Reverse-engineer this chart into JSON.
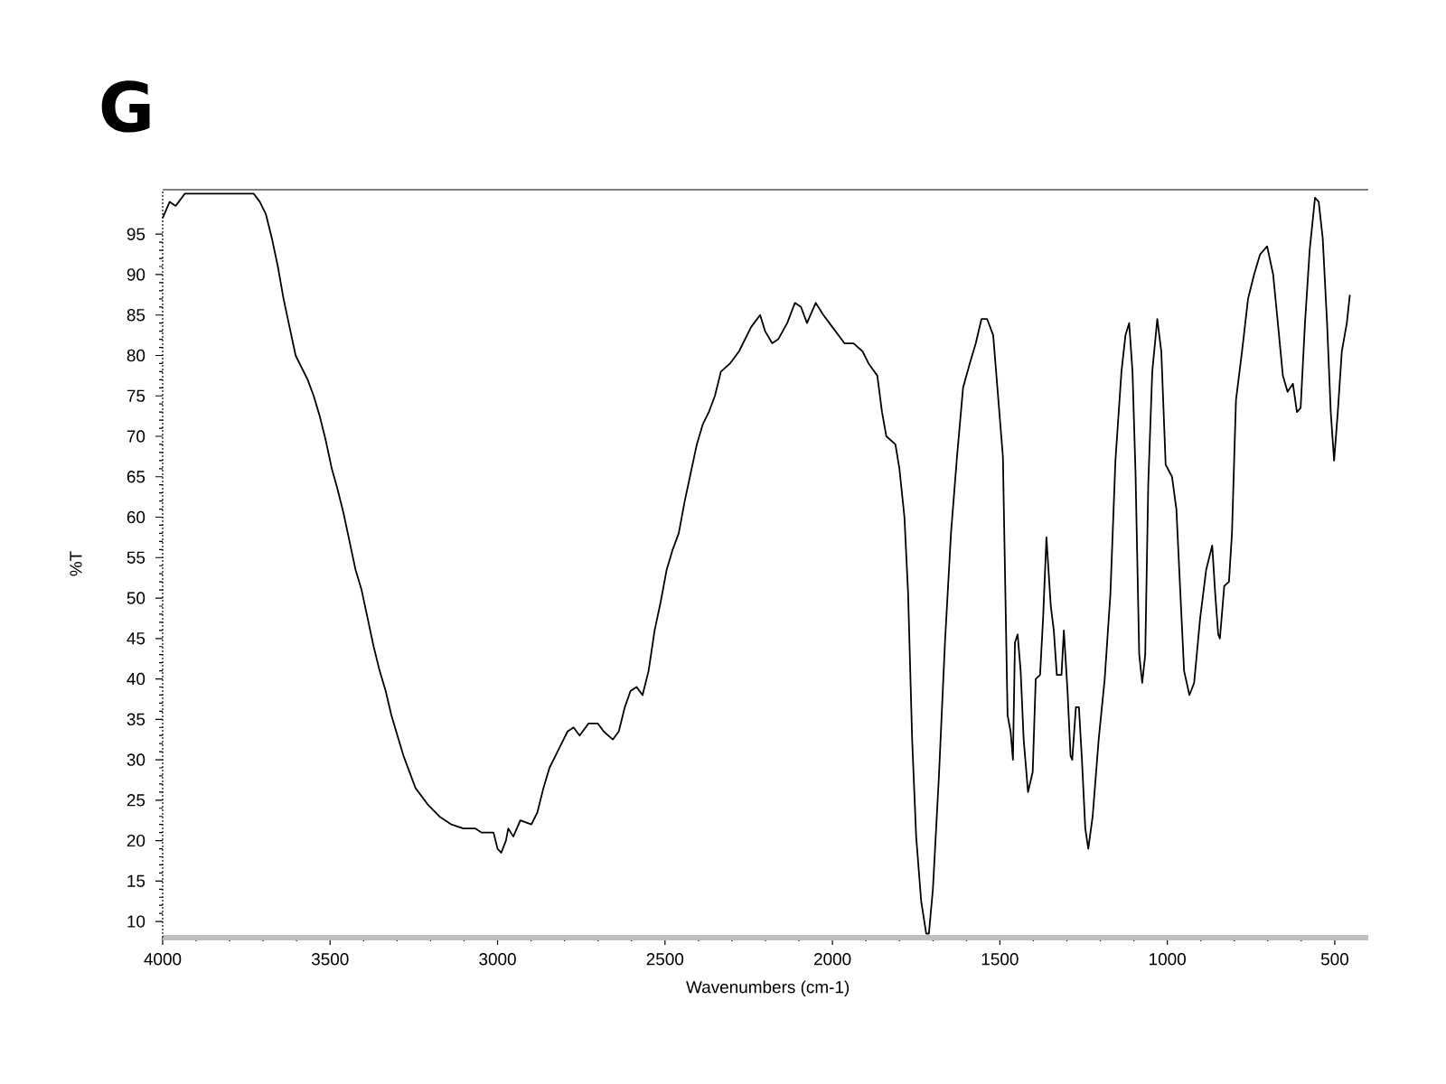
{
  "chart_data": {
    "type": "line",
    "title": "G",
    "xlabel": "Wavenumbers (cm-1)",
    "ylabel": "%T",
    "xlim": [
      4000,
      400
    ],
    "ylim": [
      8,
      100.5
    ],
    "xticks": [
      4000,
      3500,
      3000,
      2500,
      2000,
      1500,
      1000,
      500
    ],
    "yticks": [
      10,
      15,
      20,
      25,
      30,
      35,
      40,
      45,
      50,
      55,
      60,
      65,
      70,
      75,
      80,
      85,
      90,
      95
    ],
    "color": "#000000",
    "x": [
      4000,
      3979,
      3961,
      3934,
      3750,
      3728,
      3710,
      3692,
      3674,
      3656,
      3639,
      3621,
      3603,
      3585,
      3567,
      3549,
      3531,
      3513,
      3495,
      3478,
      3460,
      3442,
      3424,
      3406,
      3388,
      3370,
      3352,
      3334,
      3317,
      3299,
      3281,
      3263,
      3245,
      3209,
      3174,
      3138,
      3102,
      3066,
      3048,
      3012,
      3000,
      2989,
      2975,
      2968,
      2953,
      2932,
      2899,
      2881,
      2863,
      2845,
      2827,
      2809,
      2791,
      2773,
      2755,
      2728,
      2701,
      2683,
      2656,
      2638,
      2620,
      2603,
      2585,
      2567,
      2549,
      2531,
      2513,
      2495,
      2477,
      2459,
      2441,
      2423,
      2405,
      2387,
      2369,
      2351,
      2333,
      2306,
      2279,
      2261,
      2243,
      2216,
      2201,
      2180,
      2162,
      2135,
      2112,
      2094,
      2076,
      2050,
      2027,
      2000,
      1964,
      1937,
      1910,
      1892,
      1866,
      1852,
      1839,
      1812,
      1800,
      1785,
      1774,
      1762,
      1750,
      1735,
      1720,
      1712,
      1700,
      1682,
      1664,
      1646,
      1628,
      1610,
      1590,
      1572,
      1555,
      1538,
      1520,
      1491,
      1477,
      1468,
      1461,
      1455,
      1447,
      1438,
      1429,
      1416,
      1402,
      1393,
      1380,
      1371,
      1361,
      1348,
      1339,
      1330,
      1316,
      1309,
      1298,
      1289,
      1284,
      1273,
      1264,
      1255,
      1245,
      1236,
      1223,
      1205,
      1187,
      1170,
      1155,
      1137,
      1125,
      1114,
      1104,
      1095,
      1084,
      1075,
      1066,
      1057,
      1045,
      1030,
      1018,
      1005,
      986,
      973,
      961,
      950,
      934,
      920,
      902,
      884,
      866,
      857,
      848,
      843,
      830,
      816,
      807,
      795,
      777,
      759,
      741,
      723,
      702,
      684,
      670,
      655,
      641,
      625,
      613,
      602,
      589,
      575,
      559,
      548,
      536,
      523,
      512,
      502,
      491,
      479,
      464,
      455
    ],
    "values": [
      97,
      99,
      98.5,
      100,
      100,
      100,
      99,
      97.5,
      94.5,
      91,
      87,
      83.5,
      80,
      78.5,
      77,
      75,
      72.5,
      69.5,
      66,
      63.5,
      60.5,
      57,
      53.5,
      51,
      47.5,
      44,
      41,
      38.5,
      35.5,
      33,
      30.5,
      28.5,
      26.5,
      24.5,
      23,
      22,
      21.5,
      21.5,
      21,
      21,
      19,
      18.5,
      20,
      21.5,
      20.5,
      22.5,
      22,
      23.5,
      26.5,
      29,
      30.5,
      32,
      33.5,
      34,
      33,
      34.5,
      34.5,
      33.5,
      32.5,
      33.5,
      36.5,
      38.5,
      39,
      38,
      41,
      46,
      49.5,
      53.5,
      56,
      58,
      62,
      65.5,
      69,
      71.5,
      73,
      75,
      78,
      79,
      80.5,
      82,
      83.5,
      85,
      83,
      81.5,
      82,
      84,
      86.5,
      86,
      84,
      86.5,
      85,
      83.5,
      81.5,
      81.5,
      80.5,
      79,
      77.5,
      73,
      70,
      69,
      66,
      60,
      50.5,
      32.5,
      20.5,
      12.5,
      8.5,
      8.5,
      14,
      28,
      44.5,
      58,
      67.5,
      76,
      79,
      81.5,
      84.5,
      84.5,
      82.5,
      67.5,
      35.5,
      33.5,
      30,
      44.5,
      45.5,
      41,
      32.5,
      26,
      28.5,
      40,
      40.5,
      47.5,
      57.5,
      49,
      46,
      40.5,
      40.5,
      46,
      38.5,
      30.5,
      30,
      36.5,
      36.5,
      30,
      21.5,
      19,
      23,
      32.5,
      40,
      50.5,
      67,
      78,
      82.5,
      84,
      78,
      65.5,
      43,
      39.5,
      43,
      64,
      78,
      84.5,
      80.5,
      66.5,
      65,
      61,
      50.5,
      41,
      38,
      39.5,
      47.5,
      53.5,
      56.5,
      50.5,
      45.5,
      45,
      51.5,
      52,
      58,
      74.5,
      80.5,
      87,
      90,
      92.5,
      93.5,
      90,
      84,
      77.5,
      75.5,
      76.5,
      73,
      73.5,
      84,
      93,
      99.5,
      99,
      94.5,
      84,
      73,
      67,
      73,
      80.5,
      84,
      87.5
    ]
  }
}
